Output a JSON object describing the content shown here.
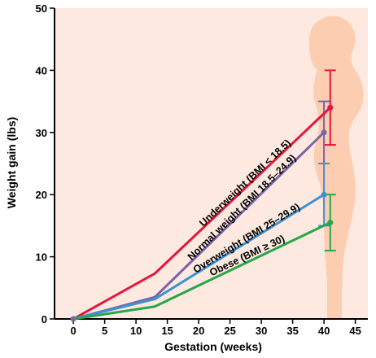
{
  "chart_data": {
    "type": "line",
    "xlabel": "Gestation (weeks)",
    "ylabel": "Weight gain (lbs)",
    "xlim": [
      -3,
      47
    ],
    "ylim": [
      0,
      50
    ],
    "xticks": [
      "0",
      "5",
      "10",
      "15",
      "20",
      "25",
      "30",
      "35",
      "40",
      "45"
    ],
    "yticks": [
      "0",
      "10",
      "20",
      "30",
      "40",
      "50"
    ],
    "grid": false,
    "background_color": "#fde9df",
    "series": [
      {
        "name": "Underweight (BMI < 18.5)",
        "color": "#e3173d",
        "x": [
          0,
          13,
          41
        ],
        "y": [
          0,
          7.3,
          34
        ],
        "error_range": [
          28,
          40
        ]
      },
      {
        "name": "Normal weight (BMI 18.5–24.9)",
        "color": "#7b64a8",
        "x": [
          0,
          13,
          40
        ],
        "y": [
          0,
          3.5,
          30
        ],
        "error_range": [
          25,
          35
        ]
      },
      {
        "name": "Overweight (BMI 25–29.9)",
        "color": "#3c93d4",
        "x": [
          0,
          13,
          40
        ],
        "y": [
          0,
          3.2,
          20
        ],
        "error_range": [
          15,
          25
        ]
      },
      {
        "name": "Obese (BMI ≥ 30)",
        "color": "#27a64a",
        "x": [
          0,
          13,
          41
        ],
        "y": [
          0,
          2,
          15.5
        ],
        "error_range": [
          11,
          20
        ]
      }
    ]
  }
}
